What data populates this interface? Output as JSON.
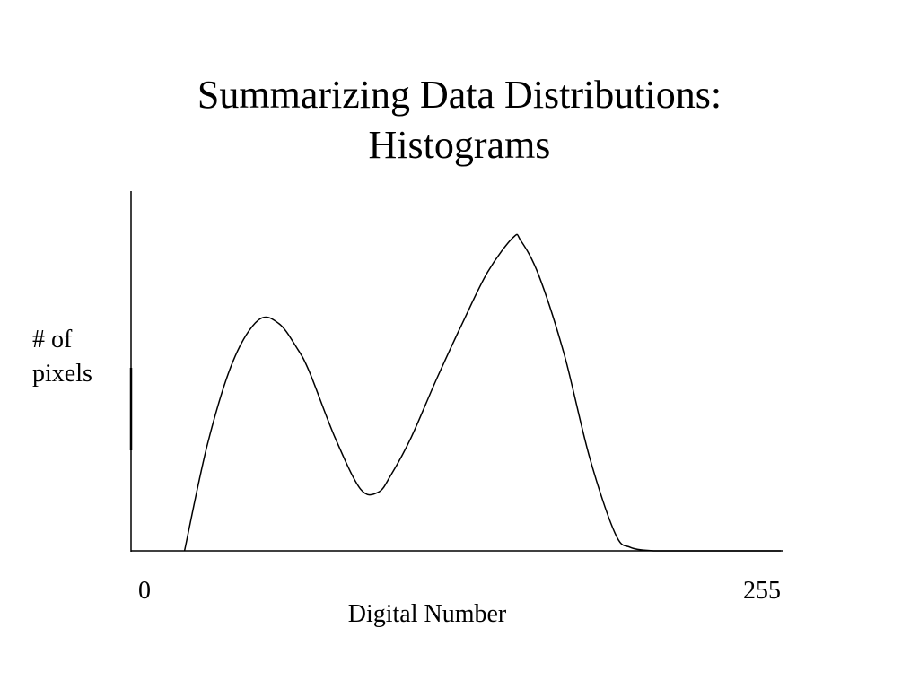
{
  "title": {
    "line1": "Summarizing Data Distributions:",
    "line2": "Histograms"
  },
  "chart_data": {
    "type": "line",
    "title": "Summarizing Data Distributions: Histograms",
    "xlabel": "Digital Number",
    "ylabel_lines": [
      "# of",
      "pixels"
    ],
    "xlim": [
      0,
      255
    ],
    "ylim": [
      0,
      100
    ],
    "x_tick_labels": [
      "0",
      "255"
    ],
    "grid": false,
    "legend": "none",
    "curve": {
      "x": [
        21,
        30,
        40,
        50,
        58,
        65,
        70,
        80,
        90,
        97,
        102,
        110,
        120,
        130,
        140,
        150,
        153,
        160,
        170,
        180,
        190,
        196,
        205,
        211,
        220,
        238,
        256
      ],
      "y": [
        0,
        31,
        55,
        67,
        66,
        59,
        52,
        33,
        18,
        17,
        22,
        33,
        50,
        66,
        81,
        91,
        90,
        80,
        57,
        27,
        5,
        1,
        0,
        0,
        0,
        0,
        0
      ]
    }
  }
}
